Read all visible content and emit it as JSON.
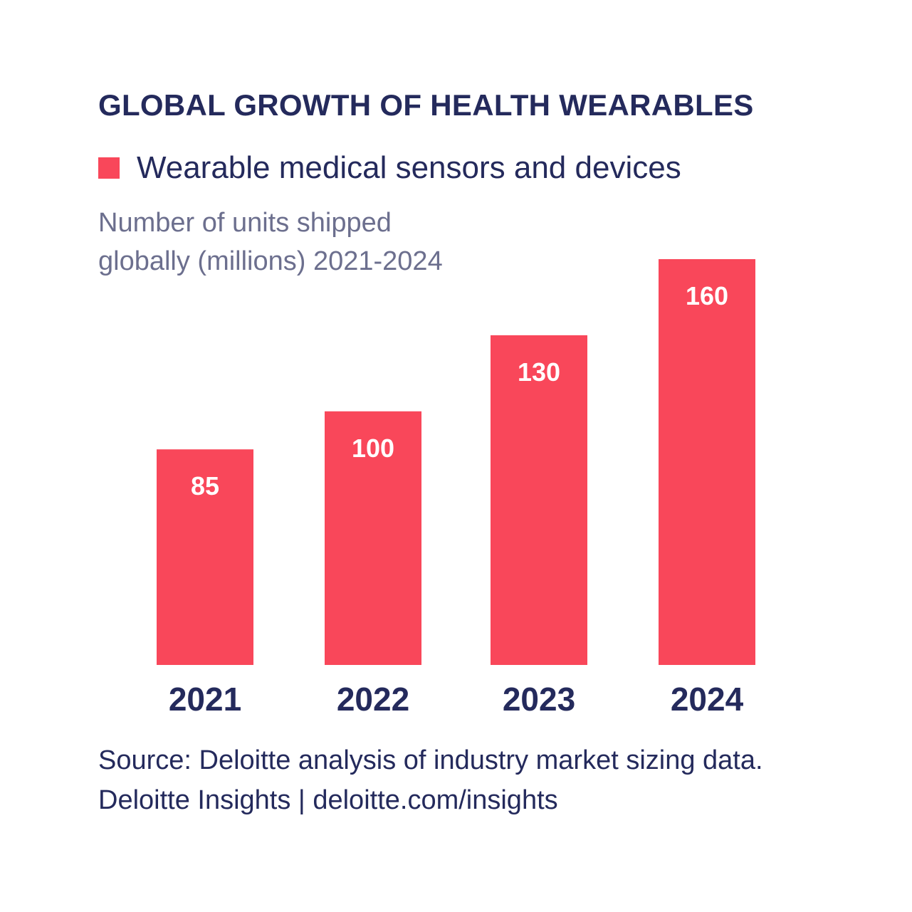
{
  "header": {
    "title": "GLOBAL GROWTH OF HEALTH WEARABLES",
    "legend_label": "Wearable medical sensors and devices",
    "subtitle_line1": "Number of units shipped",
    "subtitle_line2": "globally (millions) 2021-2024"
  },
  "chart_data": {
    "type": "bar",
    "title": "GLOBAL GROWTH OF HEALTH WEARABLES",
    "xlabel": "",
    "ylabel": "Number of units shipped globally (millions) 2021-2024",
    "categories": [
      "2021",
      "2022",
      "2023",
      "2024"
    ],
    "series": [
      {
        "name": "Wearable medical sensors and devices",
        "values": [
          85,
          100,
          130,
          160
        ]
      }
    ],
    "ylim": [
      0,
      160
    ],
    "grid": false,
    "legend_position": "top-left"
  },
  "footer": {
    "source_line": "Source: Deloitte analysis of industry market sizing data.",
    "credit_line": "Deloitte Insights | deloitte.com/insights"
  },
  "colors": {
    "bar": "#f9475a",
    "title": "#242a5c",
    "subtitle": "#6c6f8e",
    "value_label": "#ffffff"
  }
}
